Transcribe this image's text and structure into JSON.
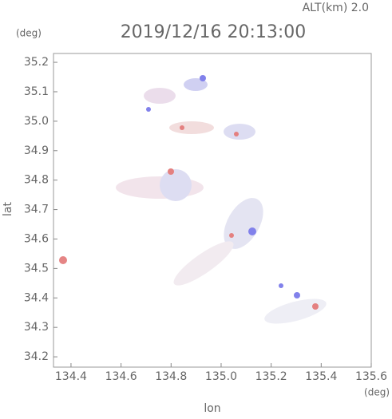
{
  "chart_data": {
    "type": "radar-map",
    "title": "2019/12/16 20:13:00",
    "altitude_label": "ALT(km)  2.0",
    "x_label": "lon",
    "y_label": "lat",
    "x_unit": "(deg)",
    "y_unit": "(deg)",
    "xlim": [
      134.33,
      135.6
    ],
    "ylim": [
      34.165,
      35.23
    ],
    "xticks": [
      134.4,
      134.6,
      134.8,
      {
        "value": 135,
        "label": "135.0"
      },
      135.2,
      135.4,
      135.6
    ],
    "yticks": [
      34.2,
      34.3,
      34.4,
      34.5,
      34.6,
      34.7,
      34.8,
      34.9,
      {
        "value": 35,
        "label": "35.0"
      },
      35.1,
      35.2
    ]
  }
}
